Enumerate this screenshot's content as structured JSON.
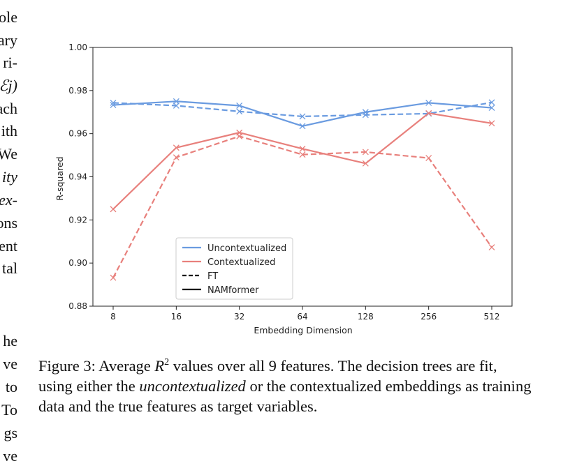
{
  "left_column_fragments": [
    {
      "text": "ole",
      "italic": false
    },
    {
      "text": "ary",
      "italic": false
    },
    {
      "text": "ri-",
      "italic": false
    },
    {
      "text": "ℰj)",
      "italic": true
    },
    {
      "text": "ach",
      "italic": false
    },
    {
      "text": "ith",
      "italic": false
    },
    {
      "text": "We",
      "italic": false
    },
    {
      "text": "ity",
      "italic": true
    },
    {
      "text": "ex-",
      "italic": true
    },
    {
      "text": "ons",
      "italic": false
    },
    {
      "text": "ent",
      "italic": false
    },
    {
      "text": "tal",
      "italic": false
    },
    {
      "text": "he",
      "italic": false
    },
    {
      "text": "ve",
      "italic": false
    },
    {
      "text": "to",
      "italic": false
    },
    {
      "text": "To",
      "italic": false
    },
    {
      "text": "gs",
      "italic": false
    },
    {
      "text": "ve",
      "italic": false
    }
  ],
  "chart_data": {
    "type": "line",
    "x_scale": "log2",
    "x": [
      8,
      16,
      32,
      64,
      128,
      256,
      512
    ],
    "x_tick_labels": [
      "8",
      "16",
      "32",
      "64",
      "128",
      "256",
      "512"
    ],
    "xlabel": "Embedding Dimension",
    "ylabel": "R-squared",
    "ylim": [
      0.88,
      1.0
    ],
    "y_ticks": [
      0.88,
      0.9,
      0.92,
      0.94,
      0.96,
      0.98,
      1.0
    ],
    "y_tick_labels": [
      "0.88",
      "0.90",
      "0.92",
      "0.94",
      "0.96",
      "0.98",
      "1.00"
    ],
    "grid": false,
    "legend_position": "lower-left",
    "legend": [
      {
        "label": "Uncontextualized",
        "color": "#6a9be0",
        "style": "solid"
      },
      {
        "label": "Contextualized",
        "color": "#e8807c",
        "style": "solid"
      },
      {
        "label": "FT",
        "color": "#111111",
        "style": "dashed"
      },
      {
        "label": "NAMformer",
        "color": "#111111",
        "style": "solid"
      }
    ],
    "series": [
      {
        "group": "Uncontextualized",
        "model": "NAMformer",
        "color": "#6a9be0",
        "dashed": false,
        "values": [
          0.9733,
          0.975,
          0.973,
          0.9635,
          0.97,
          0.9743,
          0.972
        ]
      },
      {
        "group": "Uncontextualized",
        "model": "FT",
        "color": "#6a9be0",
        "dashed": true,
        "values": [
          0.9743,
          0.973,
          0.9703,
          0.968,
          0.9687,
          0.9693,
          0.9745
        ]
      },
      {
        "group": "Contextualized",
        "model": "NAMformer",
        "color": "#e8807c",
        "dashed": false,
        "values": [
          0.925,
          0.9535,
          0.9605,
          0.953,
          0.9462,
          0.9695,
          0.9648
        ]
      },
      {
        "group": "Contextualized",
        "model": "FT",
        "color": "#e8807c",
        "dashed": true,
        "values": [
          0.8932,
          0.949,
          0.9588,
          0.9503,
          0.9515,
          0.9487,
          0.9073
        ]
      }
    ]
  },
  "caption": {
    "label": "Figure 3:",
    "text_before_math": " Average ",
    "math_base": "R",
    "math_sup": "2",
    "text_after_math": " values over all 9 features. The decision trees are fit, using either the ",
    "italic_word": "uncontextualized",
    "text_end": " or the contextualized embeddings as training data and the true features as target variables."
  }
}
